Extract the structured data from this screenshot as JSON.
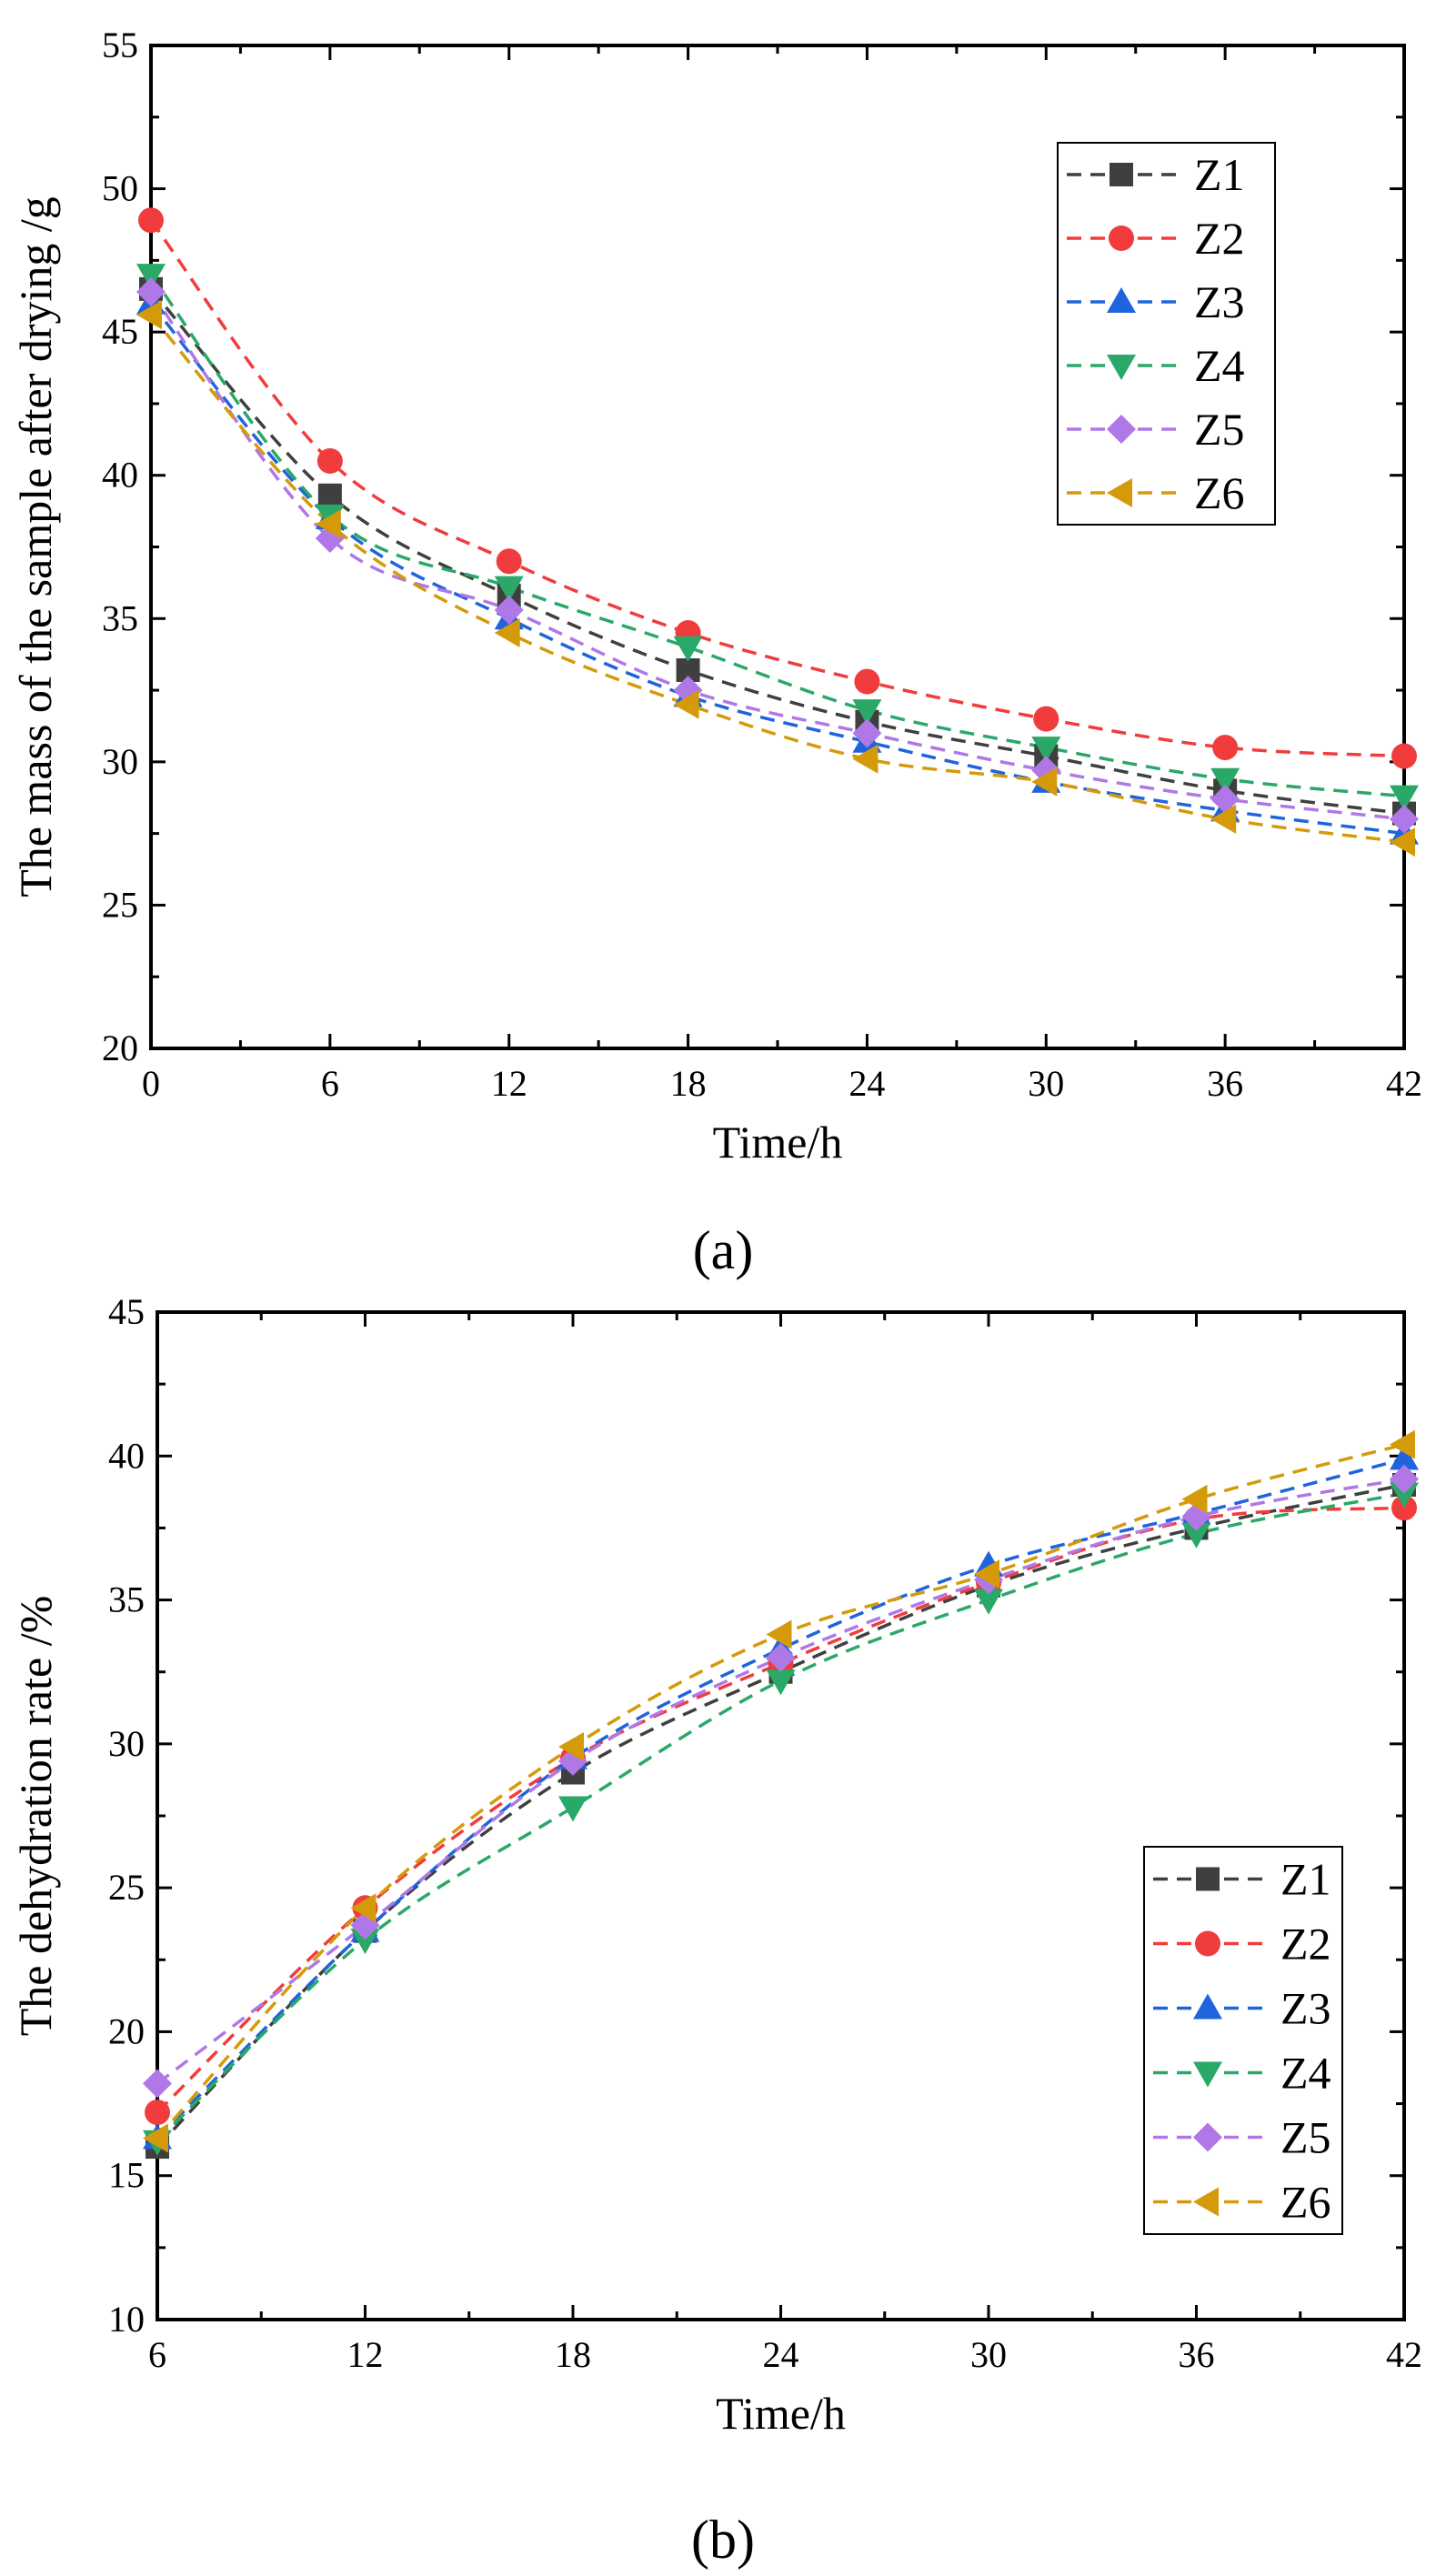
{
  "chart_data": [
    {
      "type": "line",
      "panel_label": "(a)",
      "xlabel": "Time/h",
      "ylabel": "The mass of the sample after drying  /g",
      "xlim": [
        0,
        42
      ],
      "ylim": [
        20,
        55
      ],
      "xticks": [
        0,
        6,
        12,
        18,
        24,
        30,
        36,
        42
      ],
      "yticks": [
        20,
        25,
        30,
        35,
        40,
        45,
        50,
        55
      ],
      "grid": false,
      "legend_position": "top-right",
      "x": [
        0,
        6,
        12,
        18,
        24,
        30,
        36,
        42
      ],
      "series": [
        {
          "name": "Z1",
          "color": "#3f3f3f",
          "marker": "square",
          "values": [
            46.5,
            39.3,
            35.8,
            33.2,
            31.4,
            30.2,
            29.0,
            28.2
          ]
        },
        {
          "name": "Z2",
          "color": "#f03c3c",
          "marker": "circle",
          "values": [
            48.9,
            40.5,
            37.0,
            34.5,
            32.8,
            31.5,
            30.5,
            30.2
          ]
        },
        {
          "name": "Z3",
          "color": "#1f64dc",
          "marker": "triangle-up",
          "values": [
            46.0,
            38.5,
            35.0,
            32.3,
            30.7,
            29.3,
            28.3,
            27.5
          ]
        },
        {
          "name": "Z4",
          "color": "#2aa868",
          "marker": "triangle-down",
          "values": [
            47.0,
            38.6,
            36.1,
            34.0,
            31.8,
            30.5,
            29.4,
            28.8
          ]
        },
        {
          "name": "Z5",
          "color": "#b078e6",
          "marker": "diamond",
          "values": [
            46.4,
            37.8,
            35.3,
            32.5,
            31.0,
            29.7,
            28.7,
            28.0
          ]
        },
        {
          "name": "Z6",
          "color": "#d49a0a",
          "marker": "triangle-left",
          "values": [
            45.6,
            38.3,
            34.5,
            32.0,
            30.1,
            29.3,
            28.0,
            27.2
          ]
        }
      ]
    },
    {
      "type": "line",
      "panel_label": "(b)",
      "xlabel": "Time/h",
      "ylabel": "The dehydration rate /%",
      "xlim": [
        6,
        42
      ],
      "ylim": [
        10,
        45
      ],
      "xticks": [
        6,
        12,
        18,
        24,
        30,
        36,
        42
      ],
      "yticks": [
        10,
        15,
        20,
        25,
        30,
        35,
        40,
        45
      ],
      "grid": false,
      "legend_position": "bottom-right",
      "x": [
        6,
        12,
        18,
        24,
        30,
        36,
        42
      ],
      "series": [
        {
          "name": "Z1",
          "color": "#3f3f3f",
          "marker": "square",
          "values": [
            16.0,
            23.5,
            29.0,
            32.5,
            35.5,
            37.5,
            39.0
          ]
        },
        {
          "name": "Z2",
          "color": "#f03c3c",
          "marker": "circle",
          "values": [
            17.2,
            24.3,
            29.5,
            32.8,
            35.6,
            37.8,
            38.2
          ]
        },
        {
          "name": "Z3",
          "color": "#1f64dc",
          "marker": "triangle-up",
          "values": [
            16.3,
            23.5,
            29.5,
            33.3,
            36.2,
            38.0,
            39.9
          ]
        },
        {
          "name": "Z4",
          "color": "#2aa868",
          "marker": "triangle-down",
          "values": [
            16.2,
            23.2,
            27.8,
            32.2,
            35.0,
            37.3,
            38.7
          ]
        },
        {
          "name": "Z5",
          "color": "#b078e6",
          "marker": "diamond",
          "values": [
            18.2,
            23.7,
            29.4,
            33.0,
            35.7,
            37.9,
            39.2
          ]
        },
        {
          "name": "Z6",
          "color": "#d49a0a",
          "marker": "triangle-left",
          "values": [
            16.3,
            24.3,
            29.9,
            33.8,
            35.9,
            38.5,
            40.4
          ]
        }
      ]
    }
  ]
}
